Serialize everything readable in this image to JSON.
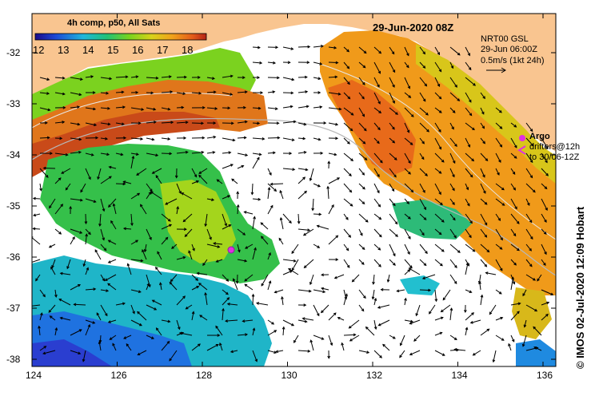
{
  "title": "4h comp, p50, All Sats",
  "date_label": "29-Jun-2020 08Z",
  "colorbar": {
    "ticks": [
      "12",
      "13",
      "14",
      "15",
      "16",
      "17",
      "18"
    ]
  },
  "currents_legend": {
    "line1": "NRT00 GSL",
    "line2": "29-Jun 06:00Z",
    "line3": "0.5m/s (1kt 24h)"
  },
  "argo_legend": {
    "label": "Argo",
    "drifters_line": "drifters@12h",
    "to_line": "to 30/06-12Z",
    "symbol_color": "#e030e0"
  },
  "credit": "© IMOS 02-Jul-2020 12:09 Hobart",
  "axes": {
    "x_ticks": [
      "124",
      "126",
      "128",
      "130",
      "132",
      "134",
      "136"
    ],
    "y_ticks": [
      "-32",
      "-33",
      "-34",
      "-35",
      "-36",
      "-37",
      "-38"
    ]
  },
  "colors": {
    "land": "#f9c590",
    "background": "#ffffff",
    "sst_scale": [
      "#2b1bb0",
      "#1f66e0",
      "#1fb8d8",
      "#22c46a",
      "#6ed31f",
      "#c8d41a",
      "#f0a619",
      "#e9611a",
      "#c8321a"
    ]
  }
}
